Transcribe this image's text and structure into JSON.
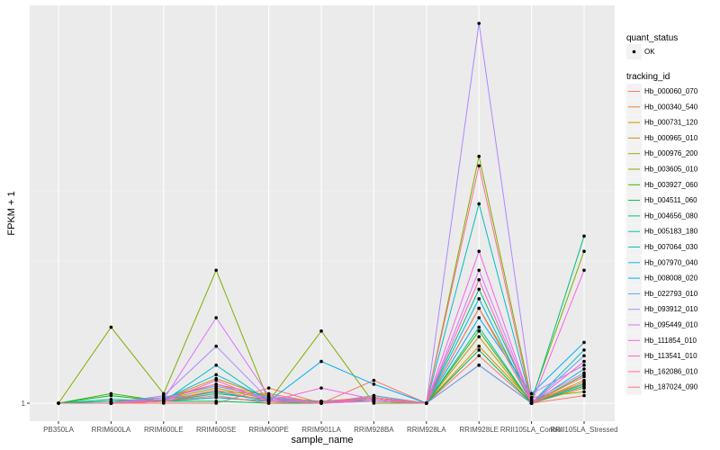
{
  "chart_data": {
    "type": "line",
    "xlabel": "sample_name",
    "ylabel": "FPKM + 1",
    "y_tick_labels": [
      "1"
    ],
    "y_tick_values": [
      1
    ],
    "ylim": [
      0,
      22.5
    ],
    "grid": true,
    "legend_placement": "right",
    "categories": [
      "PB350LA",
      "RRIM600LA",
      "RRIM600LE",
      "RRIM600SE",
      "RRIM600PE",
      "RRIM901LA",
      "RRIM928BA",
      "RRIM928LA",
      "RRIM928LE",
      "RRII105LA_Control",
      "RRII105LA_Stressed"
    ],
    "shape_legend": {
      "title": "quant_status",
      "items": [
        "OK"
      ]
    },
    "color_legend_title": "tracking_id",
    "series": [
      {
        "name": "Hb_000060_070",
        "color": "#F8766D",
        "values": [
          1,
          1,
          1,
          1,
          1.8,
          1,
          2.2,
          1,
          3.5,
          1,
          1.4
        ]
      },
      {
        "name": "Hb_000340_540",
        "color": "#EA8331",
        "values": [
          1,
          1,
          1.1,
          1.6,
          1.5,
          1,
          1.2,
          1,
          3.0,
          1,
          1.8
        ]
      },
      {
        "name": "Hb_000731_120",
        "color": "#D89000",
        "values": [
          1,
          1,
          1.2,
          2.3,
          1.3,
          1.1,
          1.3,
          1,
          4.0,
          1.1,
          2.0
        ]
      },
      {
        "name": "Hb_000965_010",
        "color": "#C09B00",
        "values": [
          1,
          1.1,
          1.3,
          2.0,
          1.4,
          1,
          1.4,
          1,
          4.5,
          1,
          2.2
        ]
      },
      {
        "name": "Hb_000976_200",
        "color": "#A3A500",
        "values": [
          1,
          1,
          1.2,
          1.8,
          1.2,
          1,
          1.1,
          1,
          6.0,
          1.3,
          1.6
        ]
      },
      {
        "name": "Hb_003605_010",
        "color": "#7CAE00",
        "values": [
          1,
          5.0,
          1.5,
          8.0,
          1.1,
          4.8,
          1,
          1,
          14.0,
          1.2,
          9.0
        ]
      },
      {
        "name": "Hb_003927_060",
        "color": "#39B600",
        "values": [
          1,
          1.5,
          1.1,
          1.3,
          1.1,
          1,
          1.2,
          1,
          4.8,
          1,
          2.5
        ]
      },
      {
        "name": "Hb_004511_060",
        "color": "#00BB4E",
        "values": [
          1,
          1.4,
          1.1,
          1.1,
          1,
          1,
          1.3,
          1,
          3.8,
          1,
          1.9
        ]
      },
      {
        "name": "Hb_004656_080",
        "color": "#00BF7D",
        "values": [
          1,
          1.2,
          1.1,
          1.5,
          1.2,
          1.1,
          1.1,
          1,
          7.0,
          1.1,
          9.8
        ]
      },
      {
        "name": "Hb_005183_180",
        "color": "#00C1A3",
        "values": [
          1,
          1,
          1.2,
          1.6,
          1.1,
          1,
          1.2,
          1,
          5.0,
          1,
          2.0
        ]
      },
      {
        "name": "Hb_007064_030",
        "color": "#00BFC4",
        "values": [
          1,
          1.1,
          1.1,
          3.0,
          1.1,
          1.1,
          1.2,
          1,
          11.5,
          1,
          3.8
        ]
      },
      {
        "name": "Hb_007970_040",
        "color": "#00B9E3",
        "values": [
          1,
          1,
          1.2,
          2.5,
          1.2,
          1.1,
          1.3,
          1,
          6.5,
          1,
          2.8
        ]
      },
      {
        "name": "Hb_008008_020",
        "color": "#00ADFA",
        "values": [
          1,
          1,
          1.1,
          1.3,
          1.1,
          3.2,
          2.0,
          1,
          5.5,
          1.5,
          4.2
        ]
      },
      {
        "name": "Hb_022793_010",
        "color": "#619CFF",
        "values": [
          1,
          1,
          1.3,
          1.9,
          1.3,
          1,
          1.4,
          1,
          3.0,
          1,
          3.5
        ]
      },
      {
        "name": "Hb_093912_010",
        "color": "#AE87FF",
        "values": [
          1,
          1,
          1.4,
          4.0,
          1.2,
          1,
          1.2,
          1,
          21.0,
          1.5,
          3.0
        ]
      },
      {
        "name": "Hb_095449_010",
        "color": "#DB72FB",
        "values": [
          1,
          1,
          1.2,
          5.5,
          1.4,
          1,
          1.1,
          1,
          8.0,
          1.1,
          2.6
        ]
      },
      {
        "name": "Hb_111854_010",
        "color": "#F564E3",
        "values": [
          1,
          1,
          1.1,
          2.2,
          1.1,
          1.8,
          1.2,
          1,
          9.0,
          1,
          8.0
        ]
      },
      {
        "name": "Hb_113541_010",
        "color": "#FF61C3",
        "values": [
          1,
          1,
          1.2,
          2.0,
          1.2,
          1,
          1.3,
          1,
          7.5,
          1,
          3.2
        ]
      },
      {
        "name": "Hb_162086_010",
        "color": "#FF6C91",
        "values": [
          1,
          1,
          1.1,
          1.7,
          1.1,
          1,
          1.2,
          1,
          13.5,
          1,
          2.4
        ]
      },
      {
        "name": "Hb_187024_090",
        "color": "#F8766D",
        "values": [
          1,
          1,
          1.1,
          1.4,
          1,
          1.1,
          1.3,
          1,
          6.0,
          1,
          2.1
        ]
      }
    ]
  }
}
